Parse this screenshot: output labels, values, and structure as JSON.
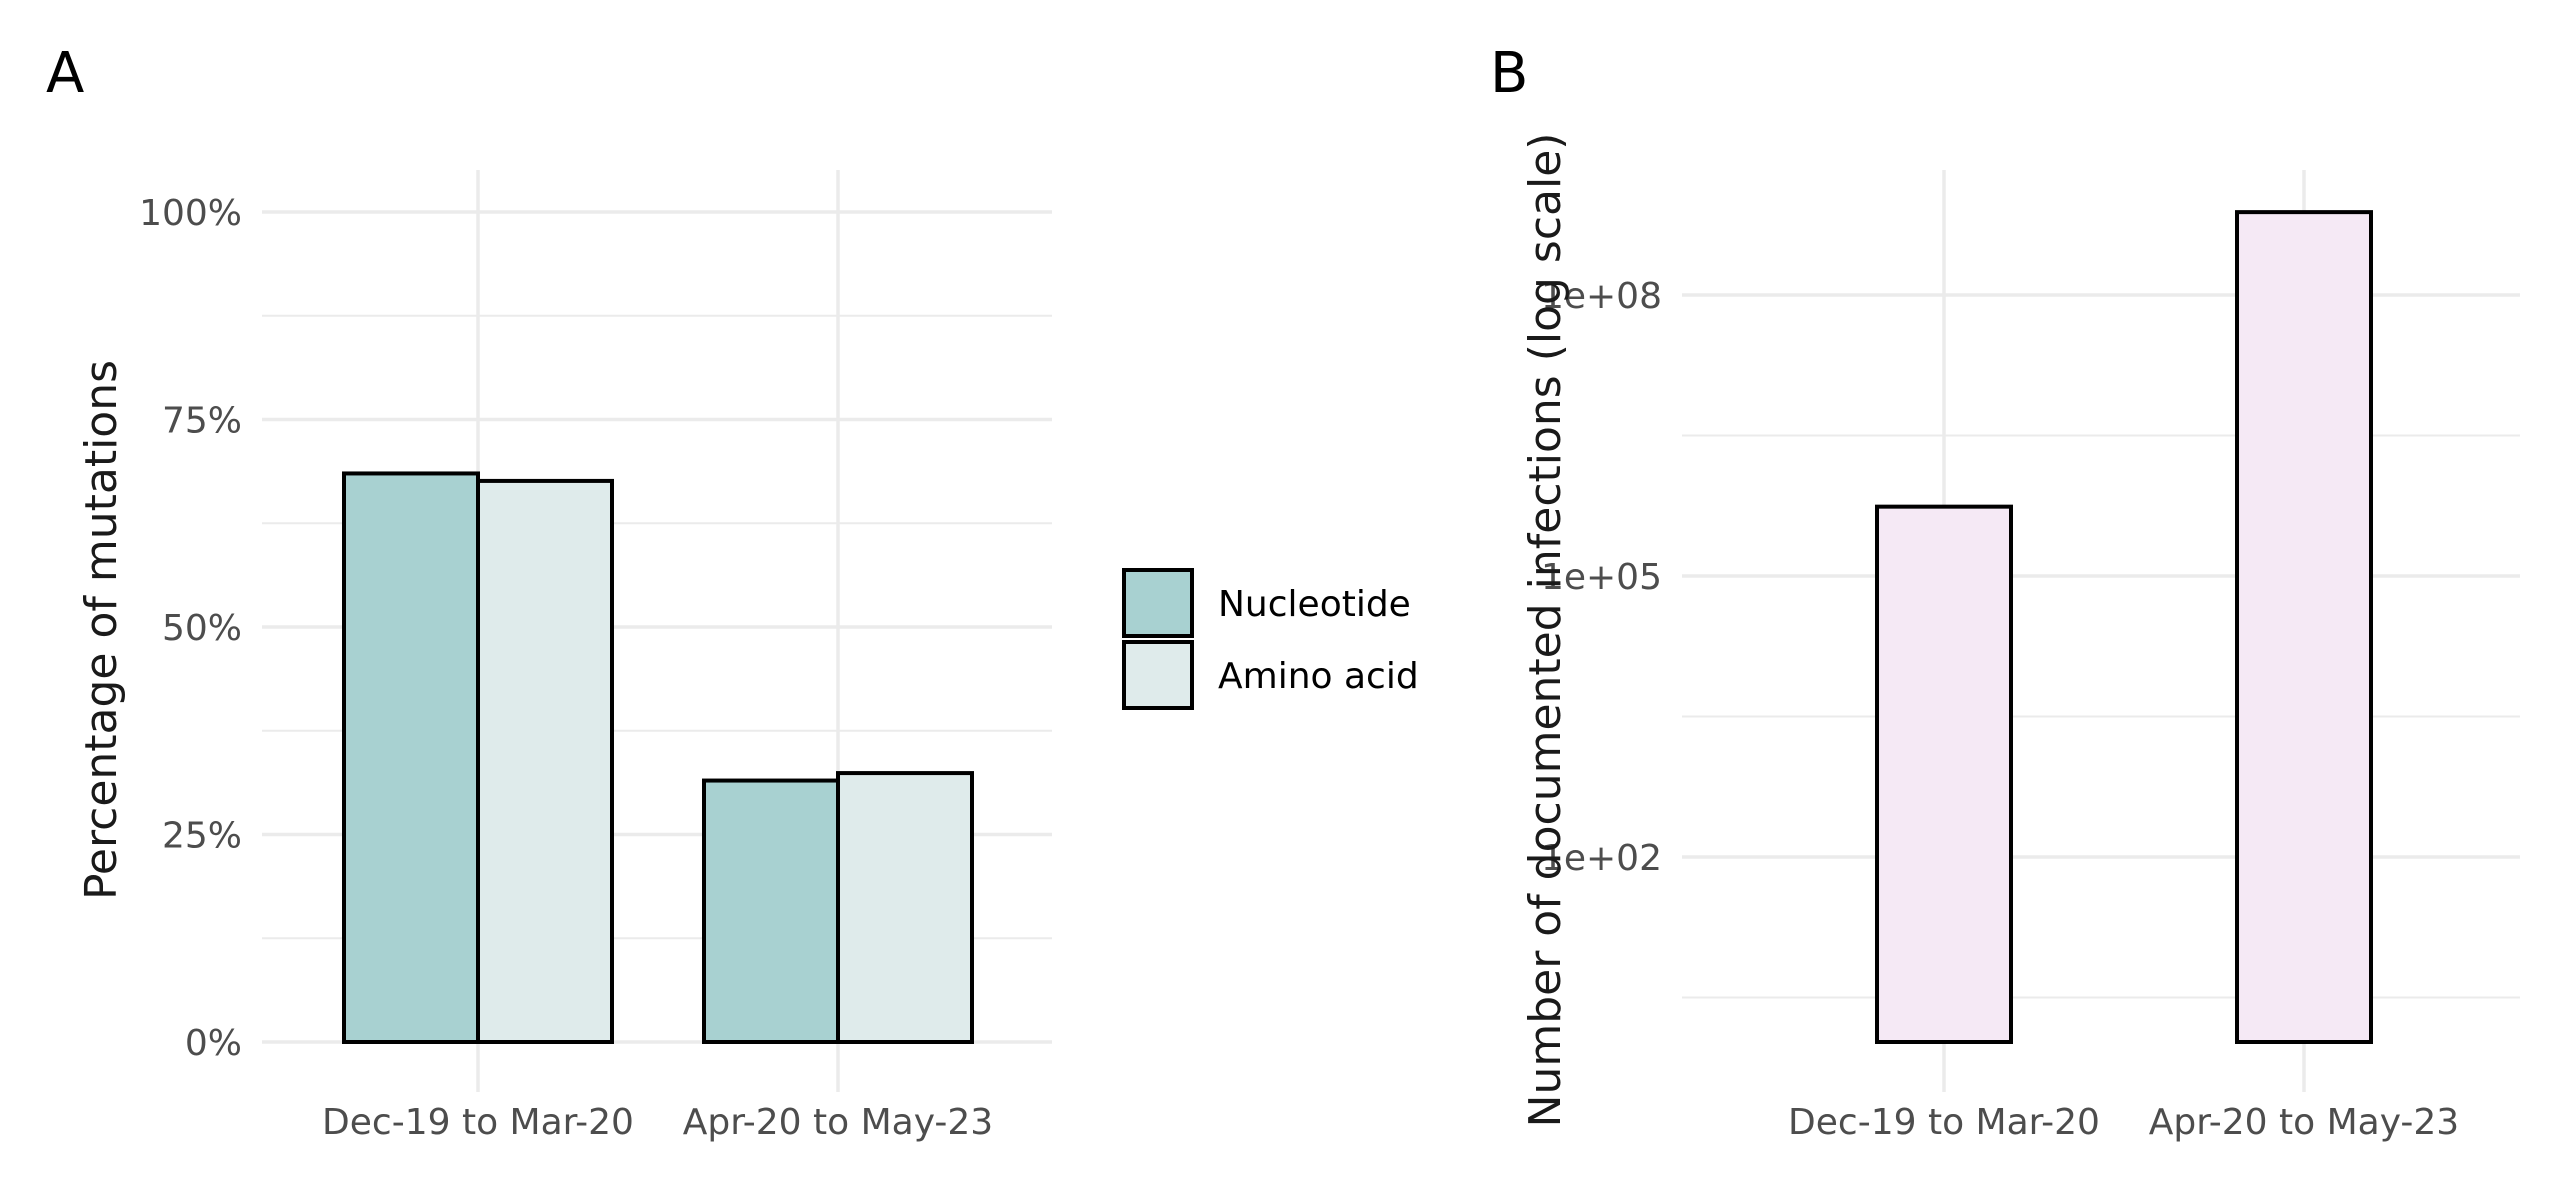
{
  "chart_data": [
    {
      "panel": "A",
      "type": "bar",
      "categories": [
        "Dec-19 to Mar-20",
        "Apr-20 to May-23"
      ],
      "series": [
        {
          "name": "Nucleotide",
          "values": [
            68.5,
            31.5
          ],
          "color": "#a8d1d1"
        },
        {
          "name": "Amino acid",
          "values": [
            67.6,
            32.4
          ],
          "color": "#dfebeb"
        }
      ],
      "ylabel": "Percentage of mutations",
      "ylim": [
        0,
        100
      ],
      "yticks": [
        "0%",
        "25%",
        "50%",
        "75%",
        "100%"
      ],
      "ytick_values": [
        0,
        25,
        50,
        75,
        100
      ],
      "grid": true,
      "legend_position": "right"
    },
    {
      "panel": "B",
      "type": "bar",
      "categories": [
        "Dec-19 to Mar-20",
        "Apr-20 to May-23"
      ],
      "values": [
        550000,
        767000000
      ],
      "color": "#f5e9f5",
      "ylabel": "Number of documented infections (log scale)",
      "yscale": "log",
      "yticks": [
        "1e+02",
        "1e+05",
        "1e+08"
      ],
      "ytick_values": [
        100,
        100000,
        100000000
      ],
      "grid": true
    }
  ]
}
